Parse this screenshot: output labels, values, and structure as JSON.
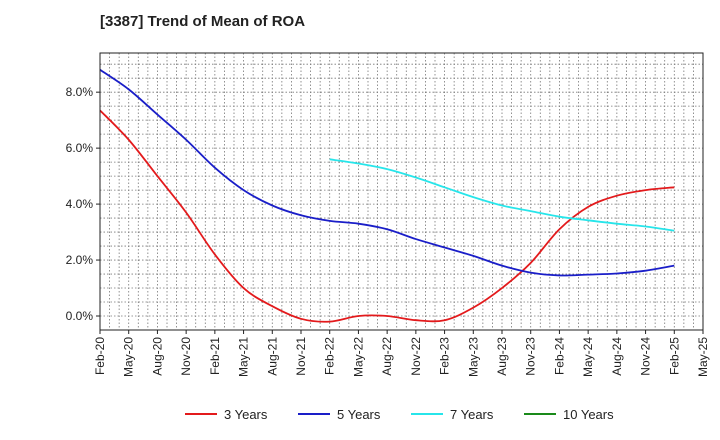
{
  "chart_data": {
    "type": "line",
    "title": "[3387]  Trend of Mean of ROA",
    "xlabel": "",
    "ylabel": "",
    "x_ticks": [
      "Feb-20",
      "May-20",
      "Aug-20",
      "Nov-20",
      "Feb-21",
      "May-21",
      "Aug-21",
      "Nov-21",
      "Feb-22",
      "May-22",
      "Aug-22",
      "Nov-22",
      "Feb-23",
      "May-23",
      "Aug-23",
      "Nov-23",
      "Feb-24",
      "May-24",
      "Aug-24",
      "Nov-24",
      "Feb-25",
      "May-25"
    ],
    "y_ticks": [
      "0.0%",
      "2.0%",
      "4.0%",
      "6.0%",
      "8.0%"
    ],
    "y_tick_values": [
      0,
      2,
      4,
      6,
      8
    ],
    "ylim": [
      -0.5,
      9.4
    ],
    "x_range_quarters": [
      0,
      21
    ],
    "grid": true,
    "legend_position": "bottom",
    "series": [
      {
        "name": "3 Years",
        "color": "#e31a1c",
        "x": [
          "Feb-20",
          "May-20",
          "Aug-20",
          "Nov-20",
          "Feb-21",
          "May-21",
          "Aug-21",
          "Nov-21",
          "Feb-22",
          "May-22",
          "Aug-22",
          "Nov-22",
          "Feb-23",
          "May-23",
          "Aug-23",
          "Nov-23",
          "Feb-24",
          "May-24",
          "Aug-24",
          "Nov-24",
          "Feb-25"
        ],
        "values": [
          7.35,
          6.3,
          5.0,
          3.7,
          2.2,
          1.0,
          0.35,
          -0.1,
          -0.2,
          0.0,
          0.0,
          -0.15,
          -0.15,
          0.3,
          1.0,
          1.9,
          3.1,
          3.9,
          4.3,
          4.5,
          4.6
        ]
      },
      {
        "name": "5 Years",
        "color": "#1a1ec8",
        "x": [
          "Feb-20",
          "May-20",
          "Aug-20",
          "Nov-20",
          "Feb-21",
          "May-21",
          "Aug-21",
          "Nov-21",
          "Feb-22",
          "May-22",
          "Aug-22",
          "Nov-22",
          "Feb-23",
          "May-23",
          "Aug-23",
          "Nov-23",
          "Feb-24",
          "May-24",
          "Aug-24",
          "Nov-24",
          "Feb-25"
        ],
        "values": [
          8.8,
          8.1,
          7.2,
          6.3,
          5.3,
          4.5,
          3.95,
          3.6,
          3.4,
          3.3,
          3.1,
          2.75,
          2.45,
          2.15,
          1.8,
          1.55,
          1.45,
          1.48,
          1.52,
          1.62,
          1.8
        ]
      },
      {
        "name": "7 Years",
        "color": "#27e5ea",
        "x": [
          "Feb-22",
          "May-22",
          "Aug-22",
          "Nov-22",
          "Feb-23",
          "May-23",
          "Aug-23",
          "Nov-23",
          "Feb-24",
          "May-24",
          "Aug-24",
          "Nov-24",
          "Feb-25"
        ],
        "values": [
          5.6,
          5.45,
          5.25,
          4.95,
          4.6,
          4.25,
          3.95,
          3.75,
          3.55,
          3.42,
          3.3,
          3.2,
          3.05
        ]
      },
      {
        "name": "10 Years",
        "color": "#1a8a1a",
        "x": [],
        "values": []
      }
    ]
  }
}
